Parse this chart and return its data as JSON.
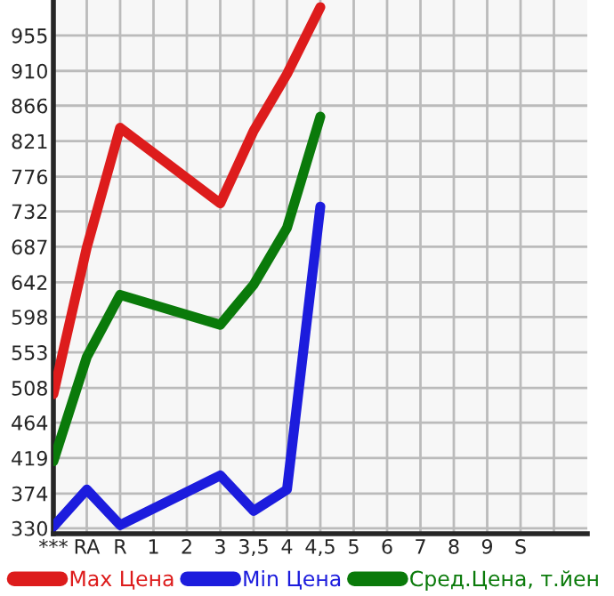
{
  "chart_data": {
    "type": "line",
    "categories": [
      "***",
      "RA",
      "R",
      "1",
      "2",
      "3",
      "3,5",
      "4",
      "4,5",
      "5",
      "6",
      "7",
      "8",
      "9",
      "S",
      null
    ],
    "series": [
      {
        "name": "Max Цена",
        "color": "#dd1c1c",
        "values": [
          500,
          686,
          838,
          null,
          null,
          742,
          834,
          906,
          991,
          null,
          null,
          null,
          null,
          null,
          null,
          null
        ]
      },
      {
        "name": "Min Цена",
        "color": "#1c1cdd",
        "values": [
          332,
          379,
          334,
          null,
          null,
          397,
          352,
          379,
          738,
          null,
          null,
          null,
          null,
          null,
          null,
          null
        ]
      },
      {
        "name": "Сред.Цена, т.йен",
        "color": "#0a7a0a",
        "values": [
          415,
          547,
          626,
          null,
          null,
          588,
          639,
          711,
          852,
          null,
          null,
          null,
          null,
          null,
          null,
          null
        ]
      }
    ],
    "ylim": [
      323,
      1000
    ],
    "yticks": [
      330,
      374,
      419,
      464,
      508,
      553,
      598,
      642,
      687,
      732,
      776,
      821,
      866,
      910,
      955
    ],
    "grid": true,
    "legend": "bottom",
    "line_style": "solid",
    "marker": "none"
  }
}
